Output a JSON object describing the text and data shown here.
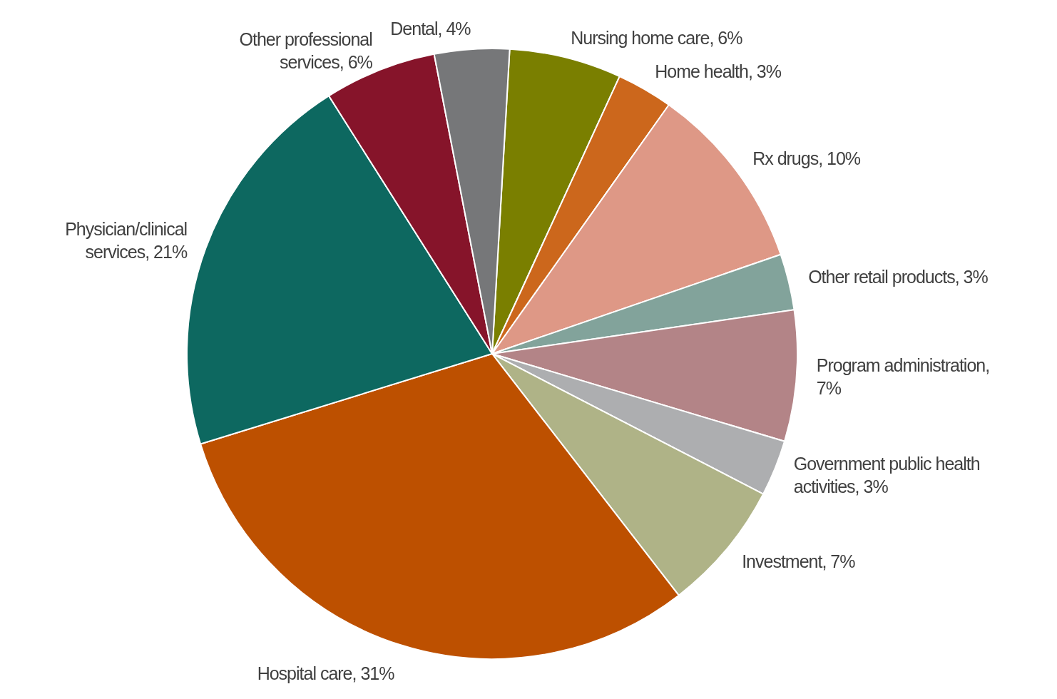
{
  "chart_data": {
    "type": "pie",
    "categories": [
      "Nursing home care, 6%",
      "Home health, 3%",
      "Rx drugs, 10%",
      "Other retail products, 3%",
      "Program administration, 7%",
      "Government public health activities, 3%",
      "Investment, 7%",
      "Hospital care, 31%",
      "Physician/clinical services, 21%",
      "Other professional services, 6%",
      "Dental, 4%"
    ],
    "values": [
      6,
      3,
      10,
      3,
      7,
      3,
      7,
      31,
      21,
      6,
      4
    ],
    "colors": [
      "#7a7f00",
      "#cc671c",
      "#de9886",
      "#82a39b",
      "#b38487",
      "#adaeb0",
      "#afb387",
      "#bd5000",
      "#0d6860",
      "#86142a",
      "#767779"
    ]
  }
}
